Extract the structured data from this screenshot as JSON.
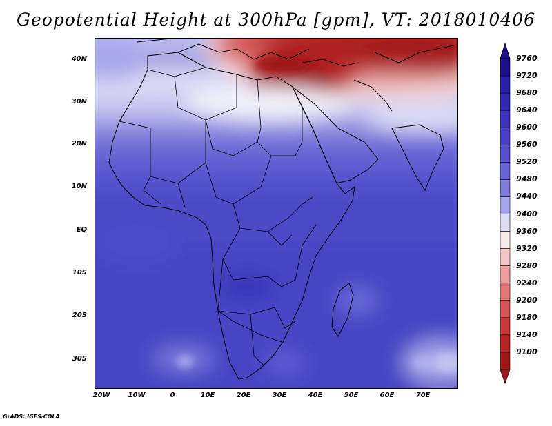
{
  "title": "Geopotential Height at 300hPa [gpm], VT: 2018010406",
  "map": {
    "lat_range": [
      -37,
      45
    ],
    "lon_range": [
      -22,
      80
    ],
    "lat_ticks": [
      "40N",
      "30N",
      "20N",
      "10N",
      "EQ",
      "10S",
      "20S",
      "30S"
    ],
    "lon_ticks": [
      "20W",
      "10W",
      "0",
      "10E",
      "20E",
      "30E",
      "40E",
      "50E",
      "60E",
      "70E"
    ],
    "projection": "latlon",
    "features": [
      "coastlines",
      "country-borders"
    ]
  },
  "colorbar": {
    "levels": [
      9760,
      9720,
      9680,
      9640,
      9600,
      9560,
      9520,
      9480,
      9440,
      9400,
      9360,
      9320,
      9280,
      9240,
      9200,
      9180,
      9140,
      9100
    ],
    "colors": [
      "#1f0f8e",
      "#2a1fa6",
      "#3428b2",
      "#3c33bc",
      "#4641c6",
      "#5451cf",
      "#6664d6",
      "#7c7cdd",
      "#a3a6e8",
      "#dcdcf6",
      "#f7eaea",
      "#f4c4c4",
      "#ec9c9c",
      "#e27676",
      "#d65656",
      "#c83a3a",
      "#b82424",
      "#a01818"
    ]
  },
  "credit": "GrADS: IGES/COLA"
}
